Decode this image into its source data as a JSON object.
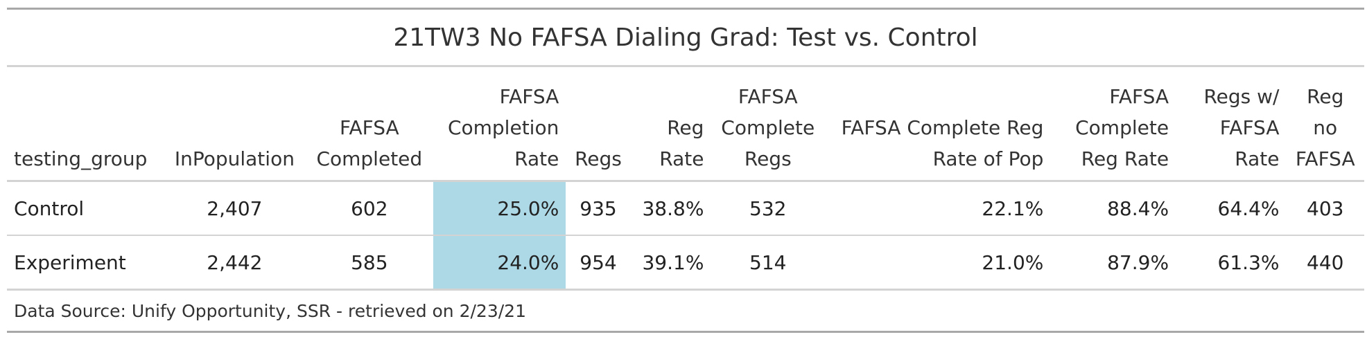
{
  "chart_data": {
    "type": "table",
    "title": "21TW3 No FAFSA Dialing Grad: Test vs. Control",
    "columns": [
      "testing_group",
      "InPopulation",
      "FAFSA Completed",
      "FAFSA Completion Rate",
      "Regs",
      "Reg Rate",
      "FAFSA Complete Regs",
      "FAFSA Complete Reg Rate of Pop",
      "FAFSA Complete Reg Rate",
      "Regs w/ FAFSA Rate",
      "Reg no FAFSA"
    ],
    "rows": [
      [
        "Control",
        "2,407",
        "602",
        "25.0%",
        "935",
        "38.8%",
        "532",
        "22.1%",
        "88.4%",
        "64.4%",
        "403"
      ],
      [
        "Experiment",
        "2,442",
        "585",
        "24.0%",
        "954",
        "39.1%",
        "514",
        "21.0%",
        "87.9%",
        "61.3%",
        "440"
      ]
    ],
    "highlight_column": "FAFSA Completion Rate",
    "highlight_color": "#add8e6",
    "source_note": "Data Source: Unify Opportunity, SSR - retrieved on 2/23/21"
  }
}
